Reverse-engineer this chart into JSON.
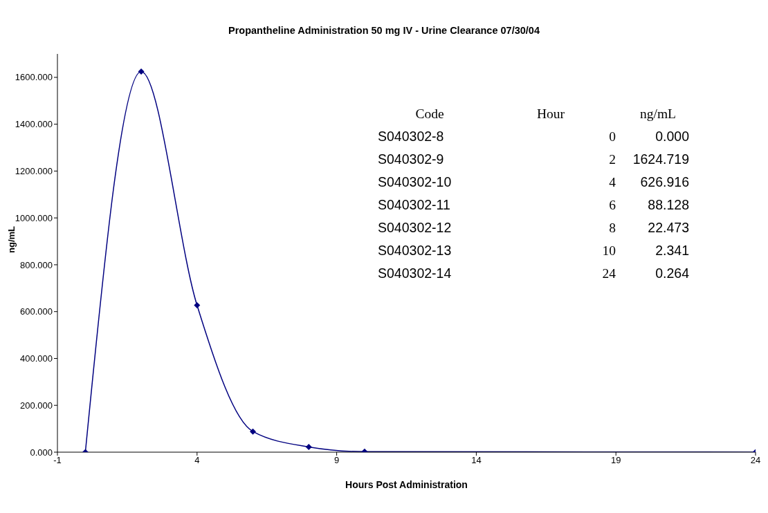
{
  "chart_data": {
    "type": "line",
    "title": "Propantheline Administration 50 mg IV - Urine Clearance  07/30/04",
    "xlabel": "Hours Post Administration",
    "ylabel": "ng/mL",
    "x": [
      0,
      2,
      4,
      6,
      8,
      10,
      24
    ],
    "series": [
      {
        "color": "#000080",
        "values": [
          0,
          1624.719,
          626.916,
          88.128,
          22.473,
          2.341,
          0.264
        ]
      }
    ],
    "value_labels": [
      "0.000",
      "1624.719",
      "626.916",
      "88.128",
      "22.473",
      "2.341",
      "0.264"
    ],
    "annotations": [
      "Code",
      "Hour",
      "ng/mL",
      "S040302-8",
      "S040302-9",
      "S040302-10",
      "S040302-11",
      "S040302-12",
      "S040302-13",
      "S040302-14",
      "0",
      "2",
      "4",
      "6",
      "8",
      "10",
      "24"
    ],
    "xlim": [
      -1,
      24
    ],
    "xticks": [
      -1,
      4,
      9,
      14,
      19,
      24
    ],
    "ylim": [
      0,
      1700
    ],
    "yticks": [
      {
        "value": 0,
        "label": "0.000"
      },
      {
        "value": 200,
        "label": "200.000"
      },
      {
        "value": 400,
        "label": "400.000"
      },
      {
        "value": 600,
        "label": "600.000"
      },
      {
        "value": 800,
        "label": "800.000"
      },
      {
        "value": 1000,
        "label": "1000.000"
      },
      {
        "value": 1200,
        "label": "1200.000"
      },
      {
        "value": 1400,
        "label": "1400.000"
      },
      {
        "value": 1600,
        "label": "1600.000"
      }
    ],
    "grid": false,
    "legend": false,
    "marker": "diamond",
    "line_style": "solid"
  }
}
